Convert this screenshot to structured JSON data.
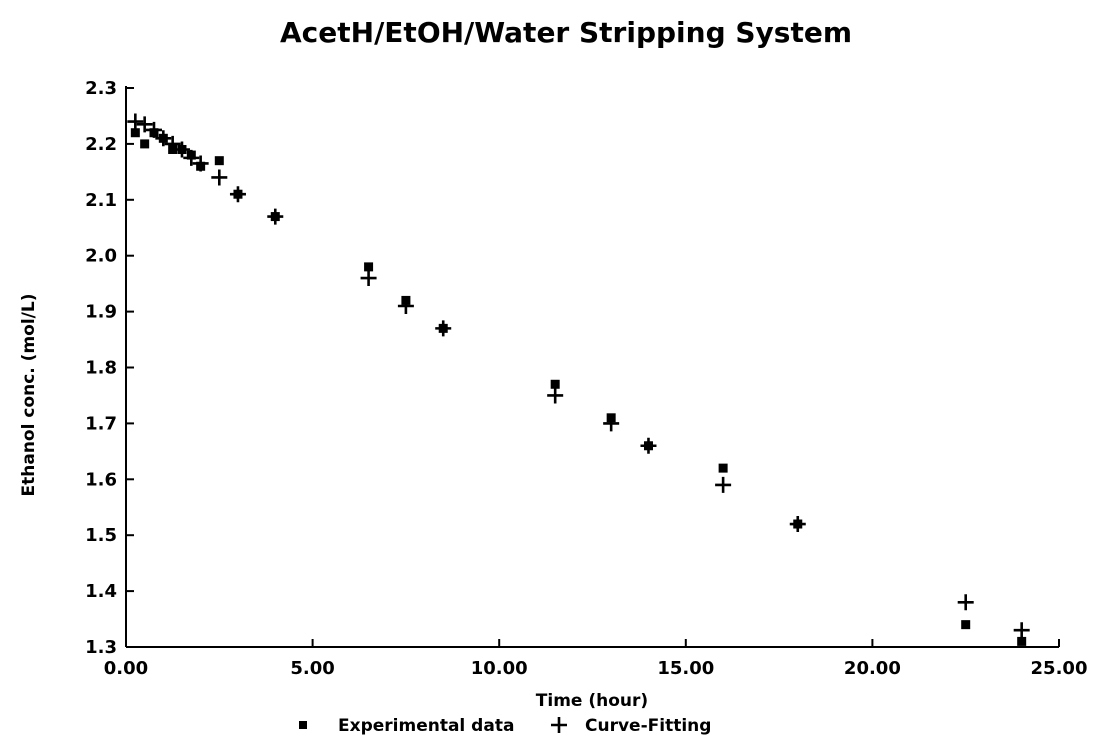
{
  "chart_data": {
    "type": "scatter",
    "title": "AcetH/EtOH/Water Stripping System",
    "xlabel": "Time (hour)",
    "ylabel": "Ethanol conc. (mol/L)",
    "xlim": [
      0,
      25
    ],
    "ylim": [
      1.3,
      2.3
    ],
    "x_ticks": [
      "0.00",
      "5.00",
      "10.00",
      "15.00",
      "20.00",
      "25.00"
    ],
    "y_ticks": [
      "1.3",
      "1.4",
      "1.5",
      "1.6",
      "1.7",
      "1.8",
      "1.9",
      "2.0",
      "2.1",
      "2.2",
      "2.3"
    ],
    "grid": false,
    "legend_position": "bottom",
    "series": [
      {
        "name": "Experimental data",
        "marker": "square",
        "x": [
          0.25,
          0.5,
          0.75,
          1.0,
          1.25,
          1.5,
          1.75,
          2.0,
          2.5,
          3.0,
          4.0,
          6.5,
          7.5,
          8.5,
          11.5,
          13.0,
          14.0,
          16.0,
          18.0,
          22.5,
          24.0
        ],
        "y": [
          2.22,
          2.2,
          2.22,
          2.21,
          2.19,
          2.19,
          2.18,
          2.16,
          2.17,
          2.11,
          2.07,
          1.98,
          1.92,
          1.87,
          1.77,
          1.71,
          1.66,
          1.62,
          1.52,
          1.34,
          1.31
        ]
      },
      {
        "name": "Curve-Fitting",
        "marker": "plus",
        "x": [
          0.25,
          0.5,
          0.75,
          1.0,
          1.25,
          1.5,
          1.75,
          2.0,
          2.5,
          3.0,
          4.0,
          6.5,
          7.5,
          8.5,
          11.5,
          13.0,
          14.0,
          16.0,
          18.0,
          22.5,
          24.0
        ],
        "y": [
          2.24,
          2.235,
          2.225,
          2.21,
          2.2,
          2.19,
          2.175,
          2.165,
          2.14,
          2.11,
          2.07,
          1.96,
          1.91,
          1.87,
          1.75,
          1.7,
          1.66,
          1.59,
          1.52,
          1.38,
          1.33
        ]
      }
    ]
  }
}
